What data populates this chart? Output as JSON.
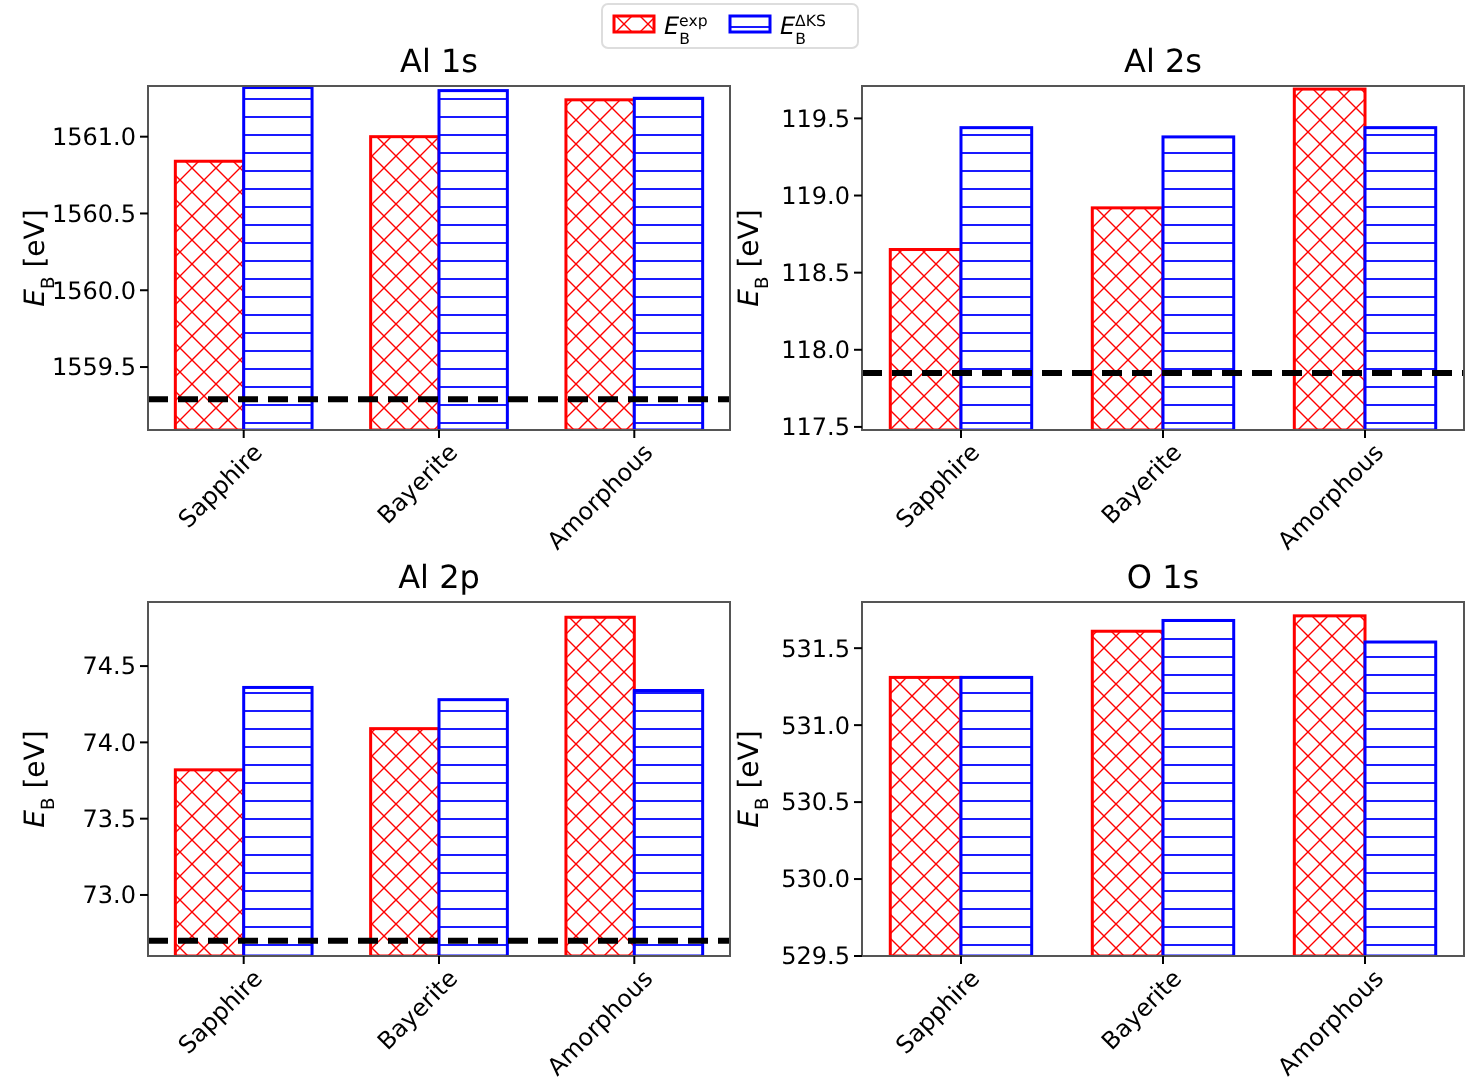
{
  "chart_data": [
    {
      "type": "bar",
      "title": "Al 1s",
      "ylabel": "E$_{B}$ [eV]",
      "categories": [
        "Sapphire",
        "Bayerite",
        "Amorphous"
      ],
      "series": [
        {
          "name": "E$_{B}$$^{exp}$",
          "color": "#ff0000",
          "values": [
            1560.84,
            1561.0,
            1561.24
          ]
        },
        {
          "name": "E$_{B}$$^{ΔKS}$",
          "color": "#0000ff",
          "values": [
            1561.32,
            1561.3,
            1561.25
          ]
        }
      ],
      "ylim": [
        1559.09,
        1561.33
      ],
      "yticks": [
        {
          "value": 1559.5,
          "label": "1559.5"
        },
        {
          "value": 1560,
          "label": "1560.0"
        },
        {
          "value": 1560.5,
          "label": "1560.5"
        },
        {
          "value": 1561,
          "label": "1561.0"
        }
      ],
      "ref_lines": [
        {
          "axis": "y",
          "value": 1559.29,
          "color": "#000000",
          "line_style": "dashed"
        }
      ],
      "legend": "top"
    },
    {
      "type": "bar",
      "title": "Al 2s",
      "ylabel": "E$_{B}$ [eV]",
      "categories": [
        "Sapphire",
        "Bayerite",
        "Amorphous"
      ],
      "series": [
        {
          "color": "#ff0000",
          "values": [
            118.65,
            118.92,
            119.69
          ]
        },
        {
          "color": "#0000ff",
          "values": [
            119.44,
            119.38,
            119.44
          ]
        }
      ],
      "ylim": [
        117.48,
        119.71
      ],
      "yticks": [
        {
          "value": 117.5,
          "label": "117.5"
        },
        {
          "value": 118,
          "label": "118.0"
        },
        {
          "value": 118.5,
          "label": "118.5"
        },
        {
          "value": 119,
          "label": "119.0"
        },
        {
          "value": 119.5,
          "label": "119.5"
        }
      ],
      "ref_lines": [
        {
          "axis": "y",
          "value": 117.85,
          "color": "#000000",
          "line_style": "dashed"
        }
      ]
    },
    {
      "type": "bar",
      "title": "Al 2p",
      "ylabel": "E$_{B}$ [eV]",
      "categories": [
        "Sapphire",
        "Bayerite",
        "Amorphous"
      ],
      "series": [
        {
          "color": "#ff0000",
          "values": [
            73.82,
            74.09,
            74.82
          ]
        },
        {
          "color": "#0000ff",
          "values": [
            74.36,
            74.28,
            74.34
          ]
        }
      ],
      "ylim": [
        72.6,
        74.92
      ],
      "yticks": [
        {
          "value": 73,
          "label": "73.0"
        },
        {
          "value": 73.5,
          "label": "73.5"
        },
        {
          "value": 74,
          "label": "74.0"
        },
        {
          "value": 74.5,
          "label": "74.5"
        }
      ],
      "ref_lines": [
        {
          "axis": "y",
          "value": 72.7,
          "color": "#000000",
          "line_style": "dashed"
        }
      ]
    },
    {
      "type": "bar",
      "title": "O 1s",
      "ylabel": "E$_{B}$ [eV]",
      "categories": [
        "Sapphire",
        "Bayerite",
        "Amorphous"
      ],
      "series": [
        {
          "color": "#ff0000",
          "values": [
            531.31,
            531.61,
            531.71
          ]
        },
        {
          "color": "#0000ff",
          "values": [
            531.31,
            531.68,
            531.54
          ]
        }
      ],
      "ylim": [
        529.5,
        531.8
      ],
      "yticks": [
        {
          "value": 529.5,
          "label": "529.5"
        },
        {
          "value": 530,
          "label": "530.0"
        },
        {
          "value": 530.5,
          "label": "530.5"
        },
        {
          "value": 531,
          "label": "531.0"
        },
        {
          "value": 531.5,
          "label": "531.5"
        }
      ]
    }
  ]
}
